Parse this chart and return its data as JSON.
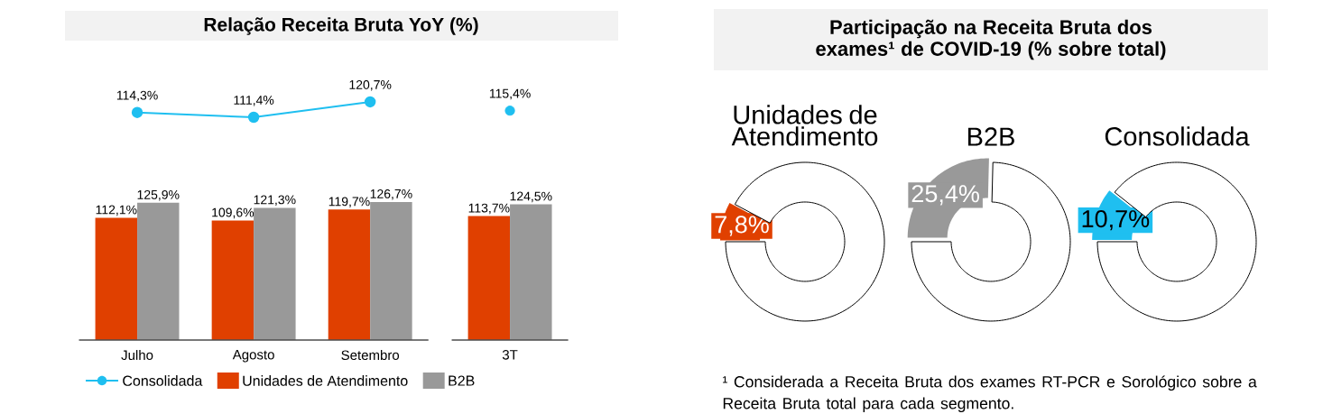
{
  "chart_data": [
    {
      "type": "line",
      "title": "Relação Receita Bruta YoY (%)",
      "categories": [
        "Julho",
        "Agosto",
        "Setembro",
        "3T"
      ],
      "legend": "bottom",
      "tick_labels": false,
      "series": [
        {
          "name": "Consolidada",
          "marker": "circle",
          "color": "#1fbff0",
          "values": [
            114.3,
            111.4,
            120.7,
            null
          ],
          "value_labels": [
            "114,3%",
            "111,4%",
            "120,7%",
            null
          ]
        },
        {
          "type": "scatter",
          "marker": "circle",
          "color": "#1fbff0",
          "x": [
            "3T"
          ],
          "values": [
            115.4
          ],
          "value_labels": [
            "115,4%"
          ]
        }
      ]
    },
    {
      "type": "bar",
      "categories": [
        "Julho",
        "Agosto",
        "Setembro",
        "3T"
      ],
      "legend": "bottom",
      "tick_labels": "x",
      "series": [
        {
          "name": "Unidades de Atendimento",
          "color": "#e04000",
          "values": [
            112.1,
            109.6,
            119.7,
            113.7
          ],
          "value_labels": [
            "112,1%",
            "109,6%",
            "119,7%",
            "113,7%"
          ]
        },
        {
          "name": "B2B",
          "color": "#999999",
          "values": [
            125.9,
            121.3,
            126.7,
            124.5
          ],
          "value_labels": [
            "125,9%",
            "121,3%",
            "126,7%",
            "124,5%"
          ]
        }
      ]
    },
    {
      "type": "other",
      "title": "Participação na Receita Bruta dos exames¹ de COVID-19 (% sobre total)",
      "annotations": [
        "¹ Considerada a Receita Bruta dos exames RT-PCR e Sorológico sobre a Receita Bruta total para cada segmento."
      ]
    },
    {
      "type": "donut",
      "title": "Unidades de Atendimento",
      "categories": [
        null,
        null
      ],
      "values": [
        7.8,
        92.2
      ],
      "colors": [
        "#e04000",
        "#ffffff"
      ],
      "value_labels": [
        "7,8%",
        null
      ]
    },
    {
      "type": "donut",
      "title": "B2B",
      "categories": [
        null,
        null
      ],
      "values": [
        25.4,
        74.6
      ],
      "colors": [
        "#999999",
        "#ffffff"
      ],
      "value_labels": [
        "25,4%",
        null
      ]
    },
    {
      "type": "donut",
      "title": "Consolidada",
      "categories": [
        null,
        null
      ],
      "values": [
        10.7,
        89.3
      ],
      "colors": [
        "#1fbff0",
        "#ffffff"
      ],
      "value_labels": [
        "10,7%",
        null
      ]
    }
  ]
}
